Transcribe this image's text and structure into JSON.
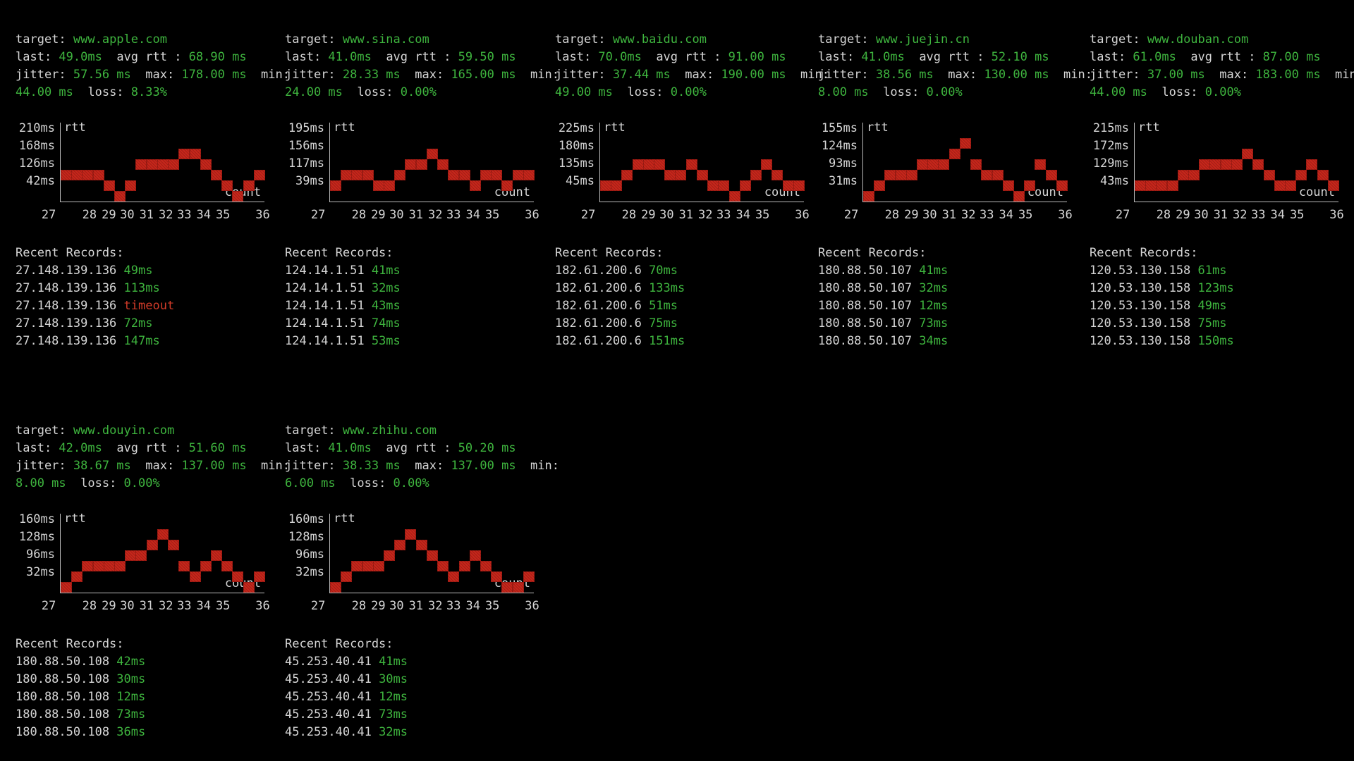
{
  "ui": {
    "labels": {
      "target": "target: ",
      "last": "last: ",
      "avg_rtt": "  avg rtt : ",
      "jitter": "jitter: ",
      "max": "  max: ",
      "min_suffix": "  min:",
      "loss": "  loss: "
    },
    "axis": {
      "y_series_label": "rtt",
      "x_series_label": "count",
      "x_ticks": [
        "27",
        "28",
        "29",
        "30",
        "31",
        "32",
        "33",
        "34",
        "35",
        "36"
      ]
    },
    "records_title": "Recent Records:"
  },
  "colors": {
    "background": "#000000",
    "foreground": "#d6d6d6",
    "green": "#3eb43e",
    "red_block": "#c7261b",
    "red_text": "#cf3a28",
    "axis": "#bbbbbb"
  },
  "panels": [
    {
      "grid": {
        "row": 1,
        "col": 1
      },
      "target": "www.apple.com",
      "last": "49.0ms",
      "avg_rtt": "68.90 ms",
      "jitter": "57.56 ms",
      "max": "178.00 ms",
      "min": "44.00 ms",
      "loss": "8.33%",
      "y_ticks": [
        "210ms",
        "168ms",
        "126ms",
        "42ms"
      ],
      "chart_levels": [
        3,
        3,
        3,
        3,
        2,
        1,
        2,
        4,
        4,
        4,
        4,
        5,
        5,
        4,
        3,
        2,
        1,
        2,
        3
      ],
      "records": [
        {
          "ip": "27.148.139.136",
          "value": "49ms",
          "status": "ok"
        },
        {
          "ip": "27.148.139.136",
          "value": "113ms",
          "status": "ok"
        },
        {
          "ip": "27.148.139.136",
          "value": "timeout",
          "status": "timeout"
        },
        {
          "ip": "27.148.139.136",
          "value": "72ms",
          "status": "ok"
        },
        {
          "ip": "27.148.139.136",
          "value": "147ms",
          "status": "ok"
        }
      ]
    },
    {
      "grid": {
        "row": 1,
        "col": 2
      },
      "target": "www.sina.com",
      "last": "41.0ms",
      "avg_rtt": "59.50 ms",
      "jitter": "28.33 ms",
      "max": "165.00 ms",
      "min": "24.00 ms",
      "loss": "0.00%",
      "y_ticks": [
        "195ms",
        "156ms",
        "117ms",
        "39ms"
      ],
      "chart_levels": [
        2,
        3,
        3,
        3,
        2,
        2,
        3,
        4,
        4,
        5,
        4,
        3,
        3,
        2,
        3,
        3,
        2,
        3,
        3
      ],
      "records": [
        {
          "ip": "124.14.1.51",
          "value": "41ms",
          "status": "ok"
        },
        {
          "ip": "124.14.1.51",
          "value": "32ms",
          "status": "ok"
        },
        {
          "ip": "124.14.1.51",
          "value": "43ms",
          "status": "ok"
        },
        {
          "ip": "124.14.1.51",
          "value": "74ms",
          "status": "ok"
        },
        {
          "ip": "124.14.1.51",
          "value": "53ms",
          "status": "ok"
        }
      ]
    },
    {
      "grid": {
        "row": 1,
        "col": 3
      },
      "target": "www.baidu.com",
      "last": "70.0ms",
      "avg_rtt": "91.00 ms",
      "jitter": "37.44 ms",
      "max": "190.00 ms",
      "min": "49.00 ms",
      "loss": "0.00%",
      "y_ticks": [
        "225ms",
        "180ms",
        "135ms",
        "45ms"
      ],
      "chart_levels": [
        2,
        2,
        3,
        4,
        4,
        4,
        3,
        3,
        4,
        3,
        2,
        2,
        1,
        2,
        3,
        4,
        3,
        2,
        2
      ],
      "records": [
        {
          "ip": "182.61.200.6",
          "value": "70ms",
          "status": "ok"
        },
        {
          "ip": "182.61.200.6",
          "value": "133ms",
          "status": "ok"
        },
        {
          "ip": "182.61.200.6",
          "value": "51ms",
          "status": "ok"
        },
        {
          "ip": "182.61.200.6",
          "value": "75ms",
          "status": "ok"
        },
        {
          "ip": "182.61.200.6",
          "value": "151ms",
          "status": "ok"
        }
      ]
    },
    {
      "grid": {
        "row": 1,
        "col": 4
      },
      "target": "www.juejin.cn",
      "last": "41.0ms",
      "avg_rtt": "52.10 ms",
      "jitter": "38.56 ms",
      "max": "130.00 ms",
      "min": "8.00 ms",
      "loss": "0.00%",
      "y_ticks": [
        "155ms",
        "124ms",
        "93ms",
        "31ms"
      ],
      "chart_levels": [
        1,
        2,
        3,
        3,
        3,
        4,
        4,
        4,
        5,
        6,
        4,
        3,
        3,
        2,
        1,
        2,
        4,
        3,
        2
      ],
      "records": [
        {
          "ip": "180.88.50.107",
          "value": "41ms",
          "status": "ok"
        },
        {
          "ip": "180.88.50.107",
          "value": "32ms",
          "status": "ok"
        },
        {
          "ip": "180.88.50.107",
          "value": "12ms",
          "status": "ok"
        },
        {
          "ip": "180.88.50.107",
          "value": "73ms",
          "status": "ok"
        },
        {
          "ip": "180.88.50.107",
          "value": "34ms",
          "status": "ok"
        }
      ]
    },
    {
      "grid": {
        "row": 1,
        "col": 5
      },
      "target": "www.douban.com",
      "last": "61.0ms",
      "avg_rtt": "87.00 ms",
      "jitter": "37.00 ms",
      "max": "183.00 ms",
      "min": "44.00 ms",
      "loss": "0.00%",
      "y_ticks": [
        "215ms",
        "172ms",
        "129ms",
        "43ms"
      ],
      "chart_levels": [
        2,
        2,
        2,
        2,
        3,
        3,
        4,
        4,
        4,
        4,
        5,
        4,
        3,
        2,
        2,
        3,
        4,
        3,
        2
      ],
      "records": [
        {
          "ip": "120.53.130.158",
          "value": "61ms",
          "status": "ok"
        },
        {
          "ip": "120.53.130.158",
          "value": "123ms",
          "status": "ok"
        },
        {
          "ip": "120.53.130.158",
          "value": "49ms",
          "status": "ok"
        },
        {
          "ip": "120.53.130.158",
          "value": "75ms",
          "status": "ok"
        },
        {
          "ip": "120.53.130.158",
          "value": "150ms",
          "status": "ok"
        }
      ]
    },
    {
      "grid": {
        "row": 2,
        "col": 1
      },
      "target": "www.douyin.com",
      "last": "42.0ms",
      "avg_rtt": "51.60 ms",
      "jitter": "38.67 ms",
      "max": "137.00 ms",
      "min": "8.00 ms",
      "loss": "0.00%",
      "y_ticks": [
        "160ms",
        "128ms",
        "96ms",
        "32ms"
      ],
      "chart_levels": [
        1,
        2,
        3,
        3,
        3,
        3,
        4,
        4,
        5,
        6,
        5,
        3,
        2,
        3,
        4,
        3,
        2,
        1,
        2
      ],
      "records": [
        {
          "ip": "180.88.50.108",
          "value": "42ms",
          "status": "ok"
        },
        {
          "ip": "180.88.50.108",
          "value": "30ms",
          "status": "ok"
        },
        {
          "ip": "180.88.50.108",
          "value": "12ms",
          "status": "ok"
        },
        {
          "ip": "180.88.50.108",
          "value": "73ms",
          "status": "ok"
        },
        {
          "ip": "180.88.50.108",
          "value": "36ms",
          "status": "ok"
        }
      ]
    },
    {
      "grid": {
        "row": 2,
        "col": 2
      },
      "target": "www.zhihu.com",
      "last": "41.0ms",
      "avg_rtt": "50.20 ms",
      "jitter": "38.33 ms",
      "max": "137.00 ms",
      "min": "6.00 ms",
      "loss": "0.00%",
      "y_ticks": [
        "160ms",
        "128ms",
        "96ms",
        "32ms"
      ],
      "chart_levels": [
        1,
        2,
        3,
        3,
        3,
        4,
        5,
        6,
        5,
        4,
        3,
        2,
        3,
        4,
        3,
        2,
        1,
        1,
        2
      ],
      "records": [
        {
          "ip": "45.253.40.41",
          "value": "41ms",
          "status": "ok"
        },
        {
          "ip": "45.253.40.41",
          "value": "30ms",
          "status": "ok"
        },
        {
          "ip": "45.253.40.41",
          "value": "12ms",
          "status": "ok"
        },
        {
          "ip": "45.253.40.41",
          "value": "73ms",
          "status": "ok"
        },
        {
          "ip": "45.253.40.41",
          "value": "32ms",
          "status": "ok"
        }
      ]
    }
  ]
}
